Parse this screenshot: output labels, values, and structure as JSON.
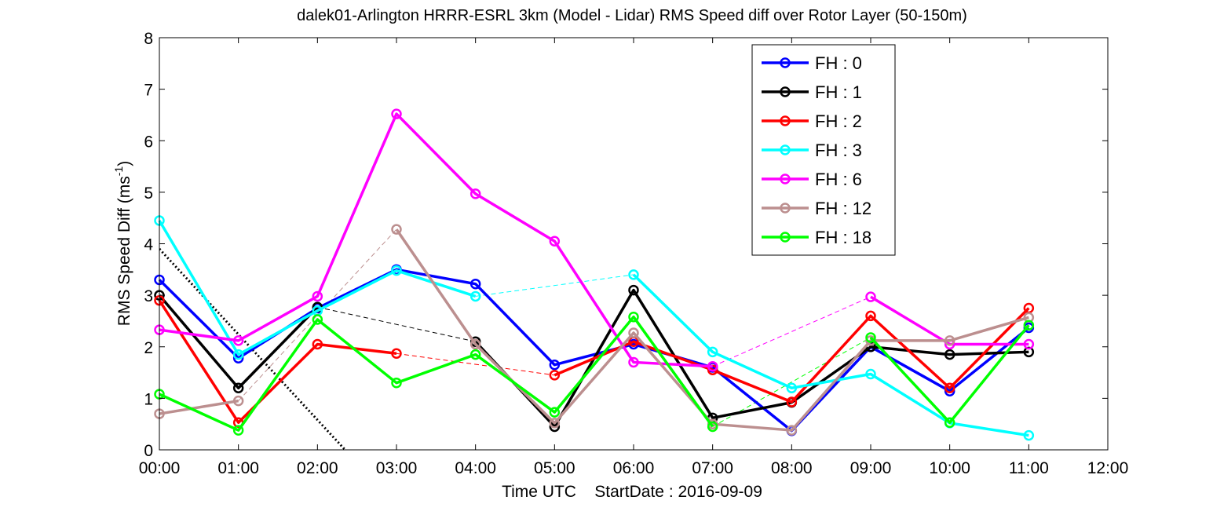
{
  "chart_data": {
    "type": "line",
    "title": "dalek01-Arlington HRRR-ESRL 3km (Model - Lidar) RMS Speed diff over Rotor Layer (50-150m)",
    "xlabel": "Time UTC    StartDate : 2016-09-09",
    "ylabel": "RMS Speed Diff (ms",
    "ylabel_sup": "-1",
    "ylabel_close": ")",
    "x_ticks": [
      "00:00",
      "01:00",
      "02:00",
      "03:00",
      "04:00",
      "05:00",
      "06:00",
      "07:00",
      "08:00",
      "09:00",
      "10:00",
      "11:00",
      "12:00"
    ],
    "y_ticks": [
      "0",
      "1",
      "2",
      "3",
      "4",
      "5",
      "6",
      "7",
      "8"
    ],
    "xlim": [
      0,
      12
    ],
    "ylim": [
      0,
      8
    ],
    "grid": false,
    "legend_position": "top-right",
    "series": [
      {
        "name": "FH : 0",
        "color": "#0000ff",
        "x": [
          0,
          1,
          2,
          3,
          4,
          5,
          6,
          7,
          8,
          9,
          10,
          11
        ],
        "y": [
          3.3,
          1.78,
          2.75,
          3.5,
          3.22,
          1.65,
          2.05,
          1.6,
          0.37,
          2.0,
          1.14,
          2.37
        ]
      },
      {
        "name": "FH : 1",
        "color": "#000000",
        "x": [
          0,
          1,
          2,
          4,
          5,
          6,
          7,
          8,
          9,
          10,
          11
        ],
        "y": [
          3.0,
          1.2,
          2.77,
          2.1,
          0.45,
          3.1,
          0.62,
          0.92,
          2.0,
          1.85,
          1.9
        ]
      },
      {
        "name": "FH : 2",
        "color": "#ff0000",
        "x": [
          0,
          1,
          2,
          3,
          5,
          6,
          7,
          8,
          9,
          10,
          11
        ],
        "y": [
          2.9,
          0.53,
          2.05,
          1.87,
          1.45,
          2.1,
          1.55,
          0.93,
          2.6,
          1.2,
          2.75
        ]
      },
      {
        "name": "FH : 3",
        "color": "#00ffff",
        "x": [
          0,
          1,
          2,
          3,
          4,
          6,
          7,
          8,
          9,
          10,
          11
        ],
        "y": [
          4.45,
          1.85,
          2.7,
          3.48,
          2.98,
          3.4,
          1.9,
          1.2,
          1.47,
          0.52,
          0.28
        ]
      },
      {
        "name": "FH : 6",
        "color": "#ff00ff",
        "x": [
          0,
          1,
          2,
          3,
          4,
          5,
          6,
          7,
          9,
          10,
          11
        ],
        "y": [
          2.33,
          2.12,
          2.98,
          6.52,
          4.97,
          4.05,
          1.7,
          1.62,
          2.97,
          2.05,
          2.05
        ]
      },
      {
        "name": "FH : 12",
        "color": "#bc8f8f",
        "x": [
          0,
          1,
          3,
          4,
          5,
          6,
          7,
          8,
          9,
          10,
          11
        ],
        "y": [
          0.7,
          0.95,
          4.28,
          2.05,
          0.52,
          2.27,
          0.5,
          0.38,
          2.12,
          2.12,
          2.57
        ]
      },
      {
        "name": "FH : 18",
        "color": "#00ff00",
        "x": [
          0,
          1,
          2,
          3,
          4,
          5,
          6,
          7,
          9,
          10,
          11
        ],
        "y": [
          1.08,
          0.38,
          2.53,
          1.3,
          1.85,
          0.73,
          2.58,
          0.45,
          2.18,
          0.53,
          2.42
        ]
      }
    ],
    "gap_lines": [
      {
        "color": "#000000",
        "x": [
          2,
          4
        ],
        "y": [
          2.77,
          2.1
        ]
      },
      {
        "color": "#ff0000",
        "x": [
          3,
          5
        ],
        "y": [
          1.87,
          1.45
        ]
      },
      {
        "color": "#00ffff",
        "x": [
          4,
          6
        ],
        "y": [
          2.98,
          3.4
        ]
      },
      {
        "color": "#ff00ff",
        "x": [
          7,
          9
        ],
        "y": [
          1.62,
          2.97
        ]
      },
      {
        "color": "#bc8f8f",
        "x": [
          1,
          3
        ],
        "y": [
          0.95,
          4.28
        ]
      },
      {
        "color": "#00ff00",
        "x": [
          7,
          9
        ],
        "y": [
          0.45,
          2.18
        ]
      }
    ],
    "trend_line": {
      "color": "#000000",
      "x": [
        0,
        2.35
      ],
      "y": [
        3.9,
        0
      ]
    }
  }
}
